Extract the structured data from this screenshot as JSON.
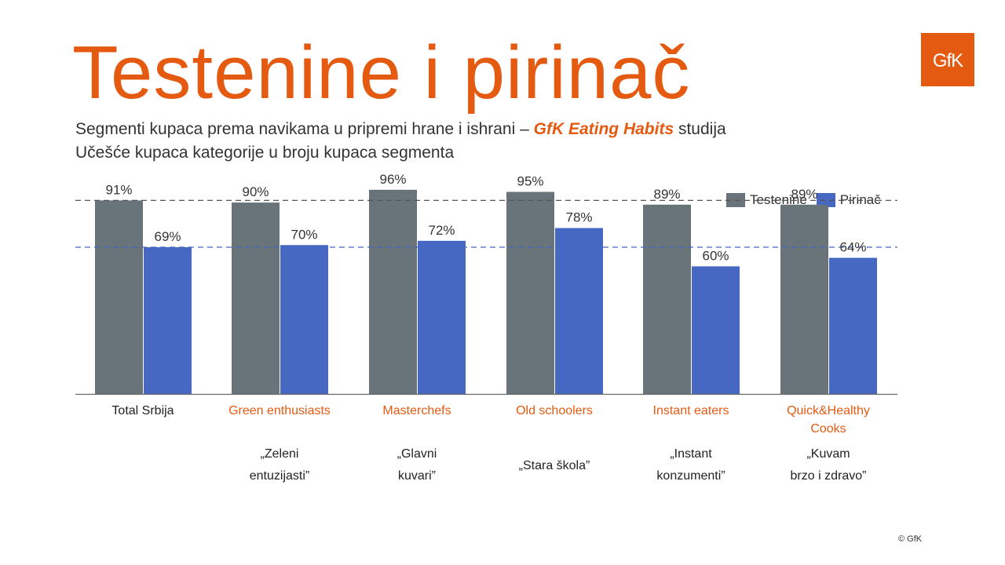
{
  "title": "Testenine i pirinač",
  "subtitle": {
    "line1_pre": "Segmenti kupaca prema navikama u pripremi hrane i ishrani – ",
    "line1_highlight": "GfK Eating Habits",
    "line1_post": " studija",
    "line2": "Učešće kupaca kategorije u broju kupaca segmenta"
  },
  "logo_text": "GfK",
  "copyright": "© GfK",
  "colors": {
    "accent": "#E55A11",
    "testenine": "#69747A",
    "pirinac": "#4668C2",
    "text": "#333333"
  },
  "chart_data": {
    "type": "bar",
    "categories": [
      {
        "label_lines": [
          "Total Srbija"
        ],
        "highlight": false,
        "translation_lines": []
      },
      {
        "label_lines": [
          "Green enthusiasts"
        ],
        "highlight": true,
        "translation_lines": [
          "„Zeleni",
          "entuzijasti”"
        ]
      },
      {
        "label_lines": [
          "Masterchefs"
        ],
        "highlight": true,
        "translation_lines": [
          "„Glavni",
          "kuvari”"
        ]
      },
      {
        "label_lines": [
          "Old schoolers"
        ],
        "highlight": true,
        "translation_lines": [
          "„Stara škola”"
        ]
      },
      {
        "label_lines": [
          "Instant eaters"
        ],
        "highlight": true,
        "translation_lines": [
          "„Instant",
          "konzumenti”"
        ]
      },
      {
        "label_lines": [
          "Quick&Healthy",
          "Cooks"
        ],
        "highlight": true,
        "translation_lines": [
          "„Kuvam",
          "brzo i zdravo”"
        ]
      }
    ],
    "series": [
      {
        "name": "Testenine",
        "color": "#69747A",
        "values": [
          91,
          90,
          96,
          95,
          89,
          89
        ],
        "labels": [
          "91%",
          "90%",
          "96%",
          "95%",
          "89%",
          "89%"
        ]
      },
      {
        "name": "Pirinač",
        "color": "#4668C2",
        "values": [
          69,
          70,
          72,
          78,
          60,
          64
        ],
        "labels": [
          "69%",
          "70%",
          "72%",
          "78%",
          "60%",
          "64%"
        ]
      }
    ],
    "reference_lines": [
      {
        "value": 91,
        "color": "#555555"
      },
      {
        "value": 69,
        "color": "#4668C2"
      }
    ],
    "ylim": [
      0,
      100
    ],
    "legend_position": "top-right"
  }
}
